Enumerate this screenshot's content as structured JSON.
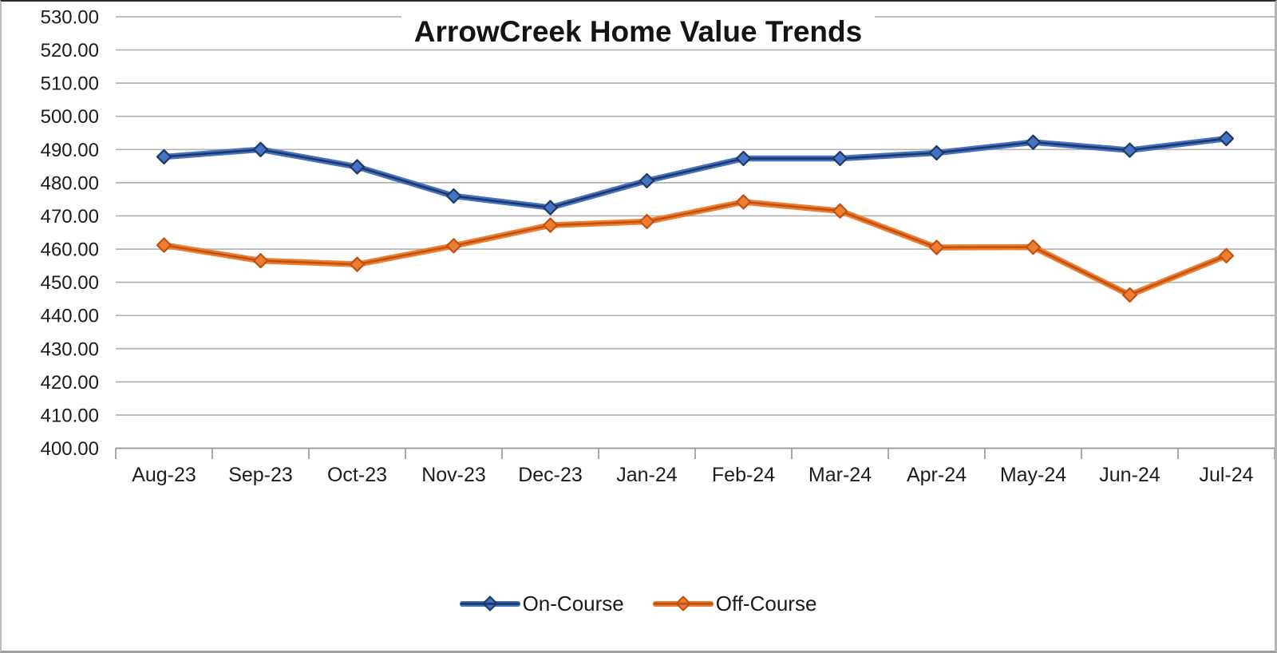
{
  "chart_data": {
    "type": "line",
    "title": "ArrowCreek Home Value Trends",
    "categories": [
      "Aug-23",
      "Sep-23",
      "Oct-23",
      "Nov-23",
      "Dec-23",
      "Jan-24",
      "Feb-24",
      "Mar-24",
      "Apr-24",
      "May-24",
      "Jun-24",
      "Jul-24"
    ],
    "series": [
      {
        "name": "On-Course",
        "color": "#4472C4",
        "color_dark": "#1F3864",
        "values": [
          487.8,
          490.0,
          484.8,
          476.0,
          472.5,
          480.6,
          487.3,
          487.3,
          489.0,
          492.2,
          489.8,
          493.3
        ]
      },
      {
        "name": "Off-Course",
        "color": "#ED7D31",
        "color_dark": "#C2500F",
        "values": [
          461.2,
          456.5,
          455.4,
          461.0,
          467.2,
          468.3,
          474.2,
          471.5,
          460.5,
          460.6,
          446.2,
          458.0
        ]
      }
    ],
    "y_axis": {
      "min": 400,
      "max": 530,
      "step": 10,
      "tick_labels": [
        "530.00",
        "520.00",
        "510.00",
        "500.00",
        "490.00",
        "480.00",
        "470.00",
        "460.00",
        "450.00",
        "440.00",
        "430.00",
        "420.00",
        "410.00",
        "400.00"
      ]
    },
    "legend": {
      "position": "bottom",
      "entries": [
        "On-Course",
        "Off-Course"
      ]
    },
    "grid": true,
    "style": {
      "grid_color": "#B3B3B3",
      "axis_color": "#9A9A9A",
      "text_color": "#1C1C1C",
      "background": "#FFFFFF"
    }
  }
}
